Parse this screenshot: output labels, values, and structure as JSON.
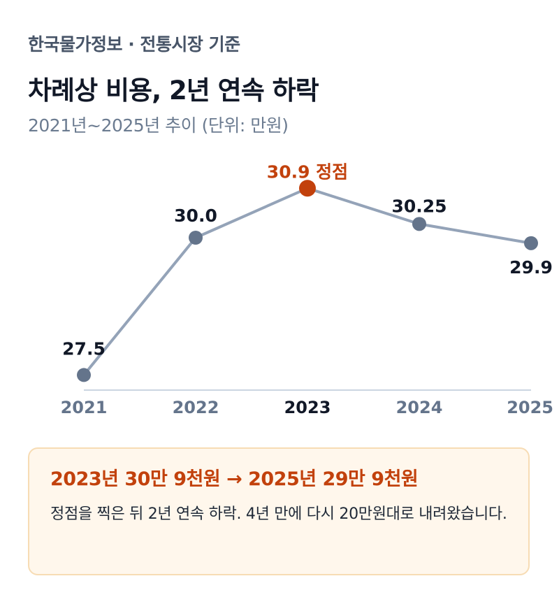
{
  "header": {
    "source": "한국물가정보 · 전통시장 기준",
    "title": "차례상 비용, 2년 연속 하락",
    "subtitle": "2021년~2025년 추이 (단위: 만원)"
  },
  "chart_data": {
    "type": "line",
    "categories": [
      "2021",
      "2022",
      "2023",
      "2024",
      "2025"
    ],
    "values": [
      27.5,
      30.0,
      30.9,
      30.25,
      29.9
    ],
    "data_labels": [
      "27.5",
      "30.0",
      "30.9 정점",
      "30.25",
      "29.9"
    ],
    "highlight_index": 2,
    "ylim": [
      27.2,
      31.4
    ],
    "grid": false,
    "colors": {
      "line": "#94a3b8",
      "point": "#64748b",
      "highlight": "#c2410c",
      "axis": "#cbd5e1",
      "tick": "#64748b",
      "tick_highlight": "#111827"
    }
  },
  "callout": {
    "headline": "2023년 30만 9천원 → 2025년 29만 9천원",
    "body": "정점을 찍은 뒤 2년 연속 하락. 4년 만에 다시 20만원대로 내려왔습니다."
  }
}
